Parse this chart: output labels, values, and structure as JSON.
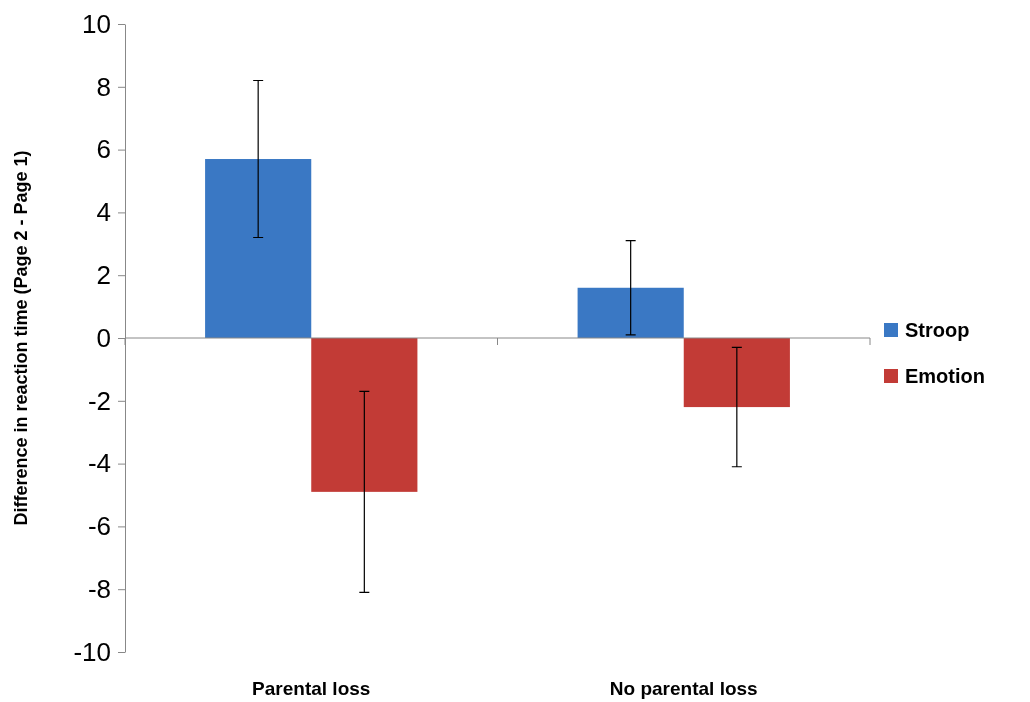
{
  "chart_data": {
    "type": "bar",
    "ylabel": "Difference in reaction time (Page 2 - Page 1)",
    "categories": [
      "Parental loss",
      "No parental loss"
    ],
    "series": [
      {
        "name": "Stroop",
        "color": "#3a78c4",
        "values": [
          5.7,
          1.6
        ],
        "errors": [
          2.5,
          1.5
        ]
      },
      {
        "name": "Emotion",
        "color": "#c23b36",
        "values": [
          -4.9,
          -2.2
        ],
        "errors": [
          3.2,
          1.9
        ]
      }
    ],
    "ylim": [
      -10,
      10
    ],
    "yticks": [
      -10,
      -8,
      -6,
      -4,
      -2,
      0,
      2,
      4,
      6,
      8,
      10
    ],
    "legend": "right"
  }
}
